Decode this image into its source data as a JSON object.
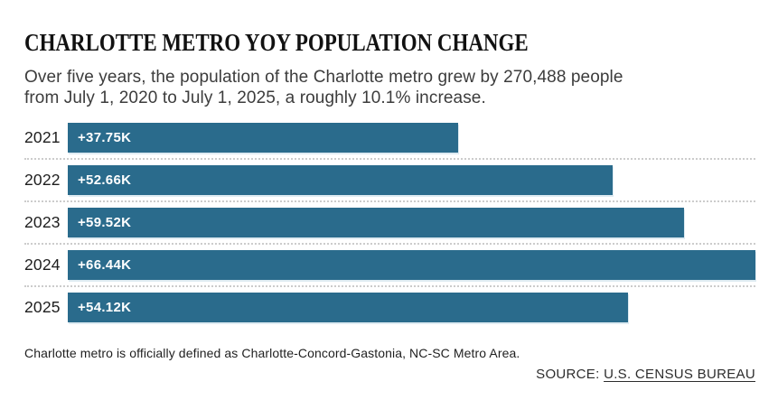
{
  "header": {
    "title": "CHARLOTTE METRO YOY POPULATION CHANGE",
    "subtitle_line1": "Over five years, the population of the Charlotte metro grew by 270,488 people",
    "subtitle_line2": "from July 1, 2020 to July 1, 2025, a roughly 10.1% increase."
  },
  "chart_data": {
    "type": "bar",
    "orientation": "horizontal",
    "title": "CHARLOTTE METRO YOY POPULATION CHANGE",
    "categories": [
      "2021",
      "2022",
      "2023",
      "2024",
      "2025"
    ],
    "values": [
      37750,
      52660,
      59520,
      66440,
      54120
    ],
    "bar_labels": [
      "+37.75K",
      "+52.66K",
      "+59.52K",
      "+66.44K",
      "+54.12K"
    ],
    "xlim": [
      0,
      66440
    ],
    "xlabel": "",
    "ylabel": "",
    "legend": "none",
    "grid": "dotted row separators",
    "bar_color": "#2a6b8c",
    "bar_label_color": "#ffffff",
    "separator_color": "#cccccc"
  },
  "footer": {
    "note": "Charlotte metro is officially defined as Charlotte-Concord-Gastonia, NC-SC Metro Area.",
    "source_prefix": "SOURCE: ",
    "source_link": "U.S. CENSUS BUREAU"
  }
}
